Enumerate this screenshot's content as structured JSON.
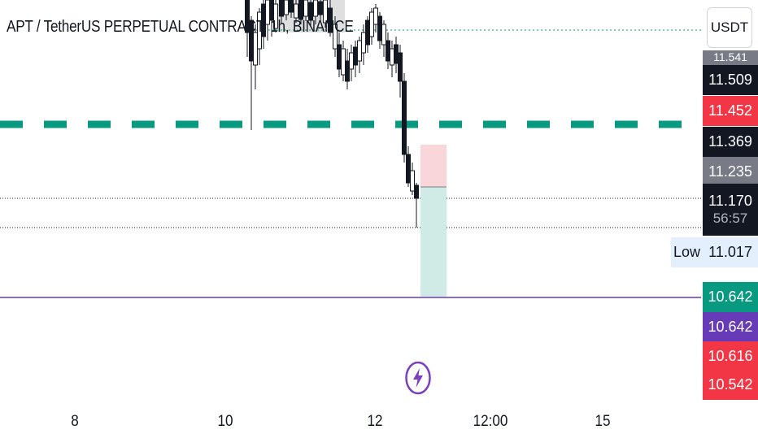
{
  "header": {
    "title": "APT / TetherUS PERPETUAL CONTRACT, 1h, BINANCE",
    "currency_button": "USDT"
  },
  "price_scale": {
    "partial_label": "11.541",
    "last_price": "11.509",
    "red_level_1": "11.452",
    "black_level_2": "11.369",
    "grey_level": "11.235",
    "current_price": "11.170",
    "countdown": "56:57",
    "low_tag": "Low",
    "low_value": "11.017",
    "green_level": "10.642",
    "purple_level": "10.642",
    "red_level_2": "10.616",
    "red_level_3": "10.542"
  },
  "time_axis": {
    "labels": [
      "8",
      "10",
      "12",
      "12:00",
      "15"
    ]
  },
  "colors": {
    "bull": "#ffffff",
    "bear": "#131722",
    "dashed_green": "#089981",
    "purple_line": "#673ab7",
    "stop_zone": "#f9d6da",
    "target_zone": "#d0ebe5",
    "badge_red": "#f23645",
    "badge_grey": "#787b86"
  },
  "icons": {
    "flash": "lightning-circle-icon"
  }
}
